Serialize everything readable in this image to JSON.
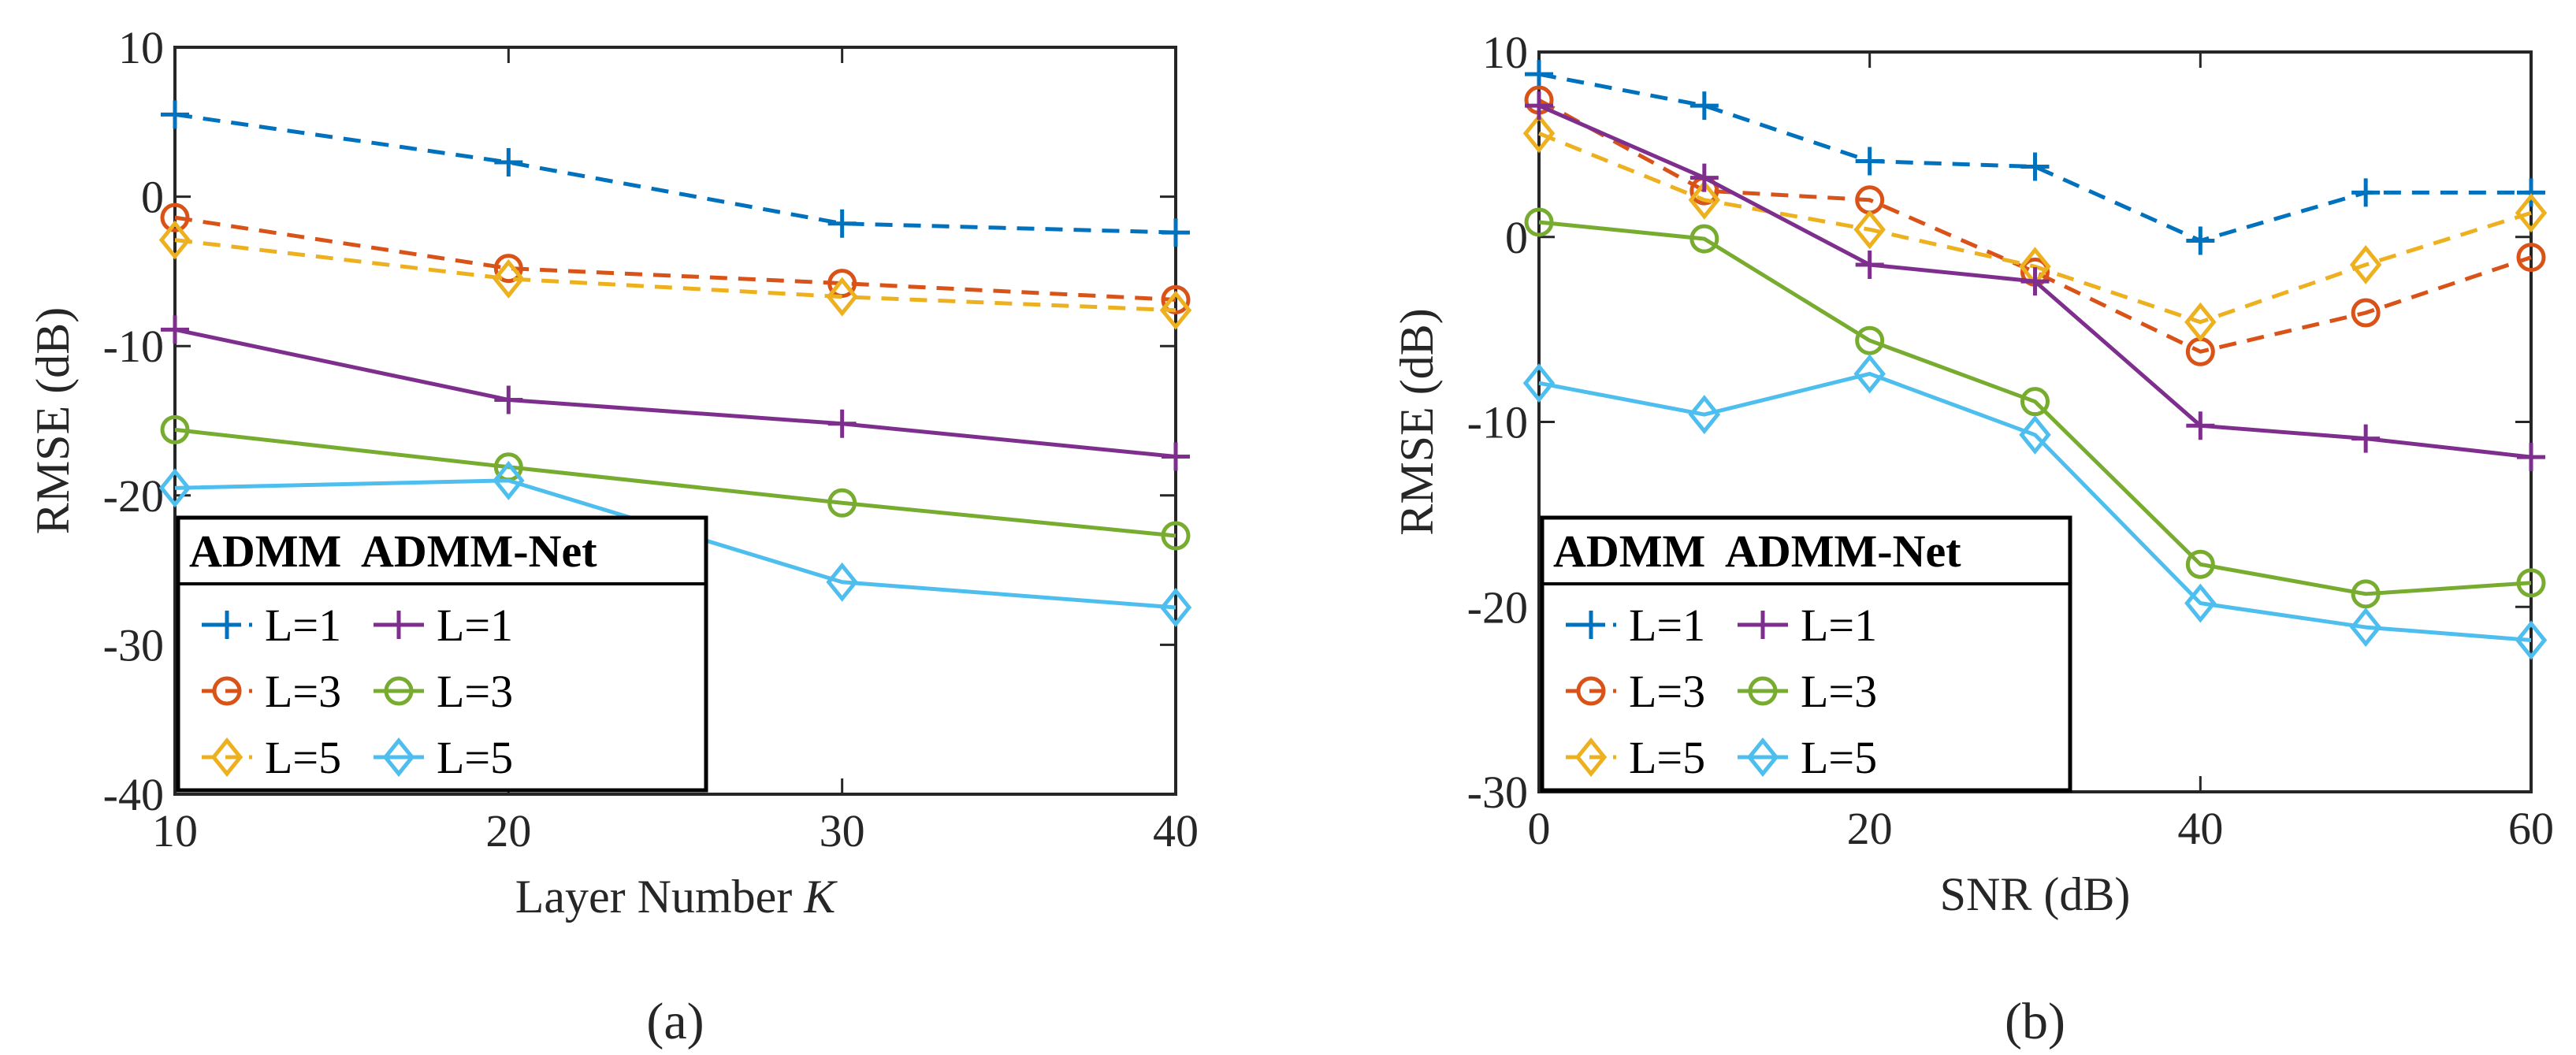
{
  "chart_data": [
    {
      "type": "line",
      "panel_label": "(a)",
      "xlabel": "Layer Number ",
      "xlabel_italic": "K",
      "ylabel": "RMSE (dB)",
      "xlim": [
        10,
        40
      ],
      "ylim": [
        -40,
        10
      ],
      "xticks": [
        10,
        20,
        30,
        40
      ],
      "yticks": [
        10,
        0,
        -10,
        -20,
        -30,
        -40
      ],
      "x": [
        10,
        20,
        30,
        40
      ],
      "legend": {
        "col1_title": "ADMM",
        "col2_title": "ADMM-Net",
        "placement": "bottom-left"
      },
      "series": [
        {
          "name": "L=1",
          "group": "ADMM",
          "color": "#0072BD",
          "dash": true,
          "marker": "plus",
          "values": [
            5.5,
            2.3,
            -1.8,
            -2.4
          ]
        },
        {
          "name": "L=3",
          "group": "ADMM",
          "color": "#D95319",
          "dash": true,
          "marker": "circle",
          "values": [
            -1.4,
            -4.8,
            -5.8,
            -6.9
          ]
        },
        {
          "name": "L=5",
          "group": "ADMM",
          "color": "#EDB120",
          "dash": true,
          "marker": "diamond",
          "values": [
            -2.9,
            -5.5,
            -6.7,
            -7.6
          ]
        },
        {
          "name": "L=1",
          "group": "ADMM-Net",
          "color": "#7E2F8E",
          "dash": false,
          "marker": "plus",
          "values": [
            -8.9,
            -13.6,
            -15.2,
            -17.4
          ]
        },
        {
          "name": "L=3",
          "group": "ADMM-Net",
          "color": "#77AC30",
          "dash": false,
          "marker": "circle",
          "values": [
            -15.6,
            -18.1,
            -20.5,
            -22.7
          ]
        },
        {
          "name": "L=5",
          "group": "ADMM-Net",
          "color": "#4DBEEE",
          "dash": false,
          "marker": "diamond",
          "values": [
            -19.5,
            -19.0,
            -25.8,
            -27.5
          ]
        }
      ]
    },
    {
      "type": "line",
      "panel_label": "(b)",
      "xlabel": "SNR (dB)",
      "xlabel_italic": "",
      "ylabel": "RMSE (dB)",
      "xlim": [
        0,
        60
      ],
      "ylim": [
        -30,
        10
      ],
      "xticks": [
        0,
        20,
        40,
        60
      ],
      "yticks": [
        10,
        0,
        -10,
        -20,
        -30
      ],
      "x": [
        0,
        10,
        20,
        30,
        40,
        50,
        60
      ],
      "legend": {
        "col1_title": "ADMM",
        "col2_title": "ADMM-Net",
        "placement": "bottom-left"
      },
      "series": [
        {
          "name": "L=1",
          "group": "ADMM",
          "color": "#0072BD",
          "dash": true,
          "marker": "plus",
          "values": [
            8.8,
            7.1,
            4.1,
            3.8,
            -0.2,
            2.4,
            2.4
          ]
        },
        {
          "name": "L=3",
          "group": "ADMM",
          "color": "#D95319",
          "dash": true,
          "marker": "circle",
          "values": [
            7.4,
            2.5,
            2.0,
            -1.9,
            -6.2,
            -4.1,
            -1.1
          ]
        },
        {
          "name": "L=5",
          "group": "ADMM",
          "color": "#EDB120",
          "dash": true,
          "marker": "diamond",
          "values": [
            5.6,
            2.0,
            0.4,
            -1.6,
            -4.6,
            -1.5,
            1.3
          ]
        },
        {
          "name": "L=1",
          "group": "ADMM-Net",
          "color": "#7E2F8E",
          "dash": false,
          "marker": "plus",
          "values": [
            7.1,
            3.2,
            -1.5,
            -2.4,
            -10.2,
            -10.9,
            -11.9
          ]
        },
        {
          "name": "L=3",
          "group": "ADMM-Net",
          "color": "#77AC30",
          "dash": false,
          "marker": "circle",
          "values": [
            0.8,
            -0.1,
            -5.6,
            -8.9,
            -17.7,
            -19.3,
            -18.7
          ]
        },
        {
          "name": "L=5",
          "group": "ADMM-Net",
          "color": "#4DBEEE",
          "dash": false,
          "marker": "diamond",
          "values": [
            -7.9,
            -9.6,
            -7.4,
            -10.7,
            -19.8,
            -21.1,
            -21.8
          ]
        }
      ]
    }
  ]
}
